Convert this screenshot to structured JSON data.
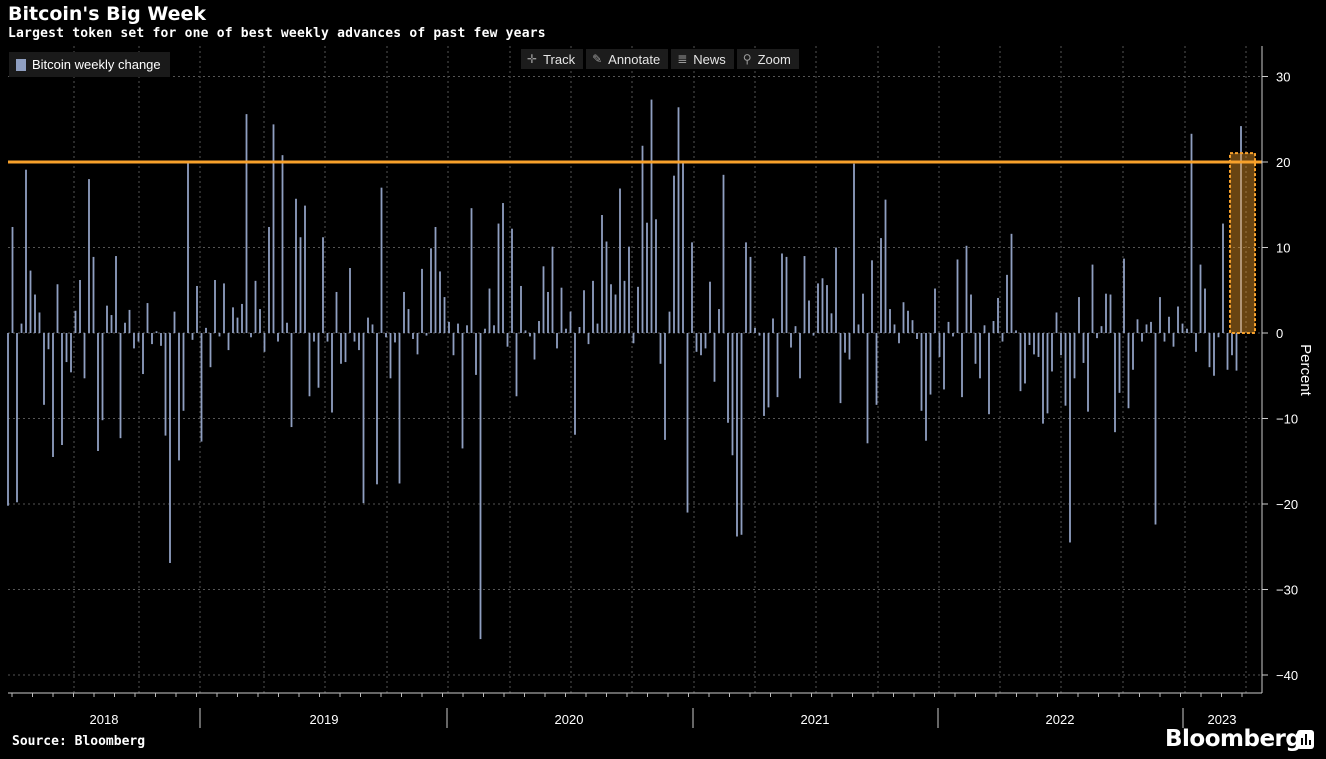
{
  "header": {
    "title": "Bitcoin's Big Week",
    "subtitle": "Largest token set for one of best weekly advances of past few years"
  },
  "legend": {
    "label": "Bitcoin weekly change",
    "color": "#8f9fc1"
  },
  "toolbar": {
    "track_label": "Track",
    "annotate_label": "Annotate",
    "news_label": "News",
    "zoom_label": "Zoom"
  },
  "footer": {
    "source": "Source: Bloomberg",
    "brand": "Bloomberg"
  },
  "colors": {
    "bar": "#8f9fc1",
    "reference_line": "#f7a12b",
    "highlight": "#f7a12b",
    "grid": "#5a5a5a"
  },
  "chart_data": {
    "type": "bar",
    "series_name": "Bitcoin weekly change",
    "ylabel": "Percent",
    "ylim": [
      -42,
      33
    ],
    "yticks": [
      30,
      20,
      10,
      0,
      -10,
      -20,
      -30,
      -40
    ],
    "x_labels": [
      "2018",
      "2019",
      "2020",
      "2021",
      "2022",
      "2023"
    ],
    "reference_line": 20,
    "highlight_last_bar": true,
    "grid": true,
    "legend_position": "top-left",
    "values": [
      -20.2,
      12.4,
      -19.8,
      1.1,
      19.1,
      7.3,
      4.5,
      2.4,
      -8.4,
      -1.9,
      -14.5,
      5.7,
      -13.1,
      -3.4,
      -4.6,
      2.6,
      6.2,
      -5.3,
      18.0,
      8.9,
      -13.8,
      -10.2,
      3.2,
      2.1,
      9.0,
      -12.3,
      1.2,
      2.7,
      -1.8,
      -1.0,
      -4.8,
      3.5,
      -1.3,
      0.2,
      -1.5,
      -12.0,
      -26.9,
      2.5,
      -14.9,
      -9.1,
      19.9,
      -0.8,
      5.5,
      -12.7,
      0.6,
      -4.0,
      6.2,
      -0.4,
      5.8,
      -2.0,
      3.0,
      1.8,
      3.4,
      25.6,
      -0.5,
      6.1,
      2.8,
      -2.2,
      12.4,
      24.4,
      -1.0,
      20.8,
      1.2,
      -11.0,
      15.7,
      11.2,
      14.9,
      -7.4,
      -1.0,
      -6.4,
      11.2,
      -1.0,
      -9.3,
      4.8,
      -3.6,
      -3.4,
      7.6,
      -1.0,
      -2.0,
      -19.9,
      1.8,
      1.0,
      -17.7,
      17.0,
      -0.5,
      -5.3,
      -1.1,
      -17.6,
      4.8,
      2.8,
      -0.7,
      -2.5,
      7.5,
      -0.3,
      9.9,
      12.4,
      7.2,
      4.2,
      1.3,
      -2.6,
      1.1,
      -13.5,
      0.9,
      14.6,
      -4.9,
      -35.8,
      0.5,
      5.2,
      0.9,
      12.8,
      15.2,
      -1.6,
      12.2,
      -7.4,
      5.5,
      0.3,
      -0.4,
      -3.1,
      1.4,
      7.8,
      4.8,
      10.1,
      -1.8,
      5.3,
      0.5,
      2.5,
      -11.9,
      0.7,
      5.0,
      -1.3,
      6.1,
      1.1,
      13.8,
      10.7,
      5.7,
      4.5,
      16.9,
      6.1,
      10.1,
      -1.2,
      5.4,
      21.9,
      12.9,
      27.3,
      13.3,
      -3.6,
      -12.5,
      2.5,
      18.4,
      26.4,
      20.1,
      -21.0,
      10.6,
      -2.2,
      -2.6,
      -1.8,
      6.0,
      -5.7,
      2.8,
      18.5,
      -10.5,
      -14.3,
      -23.8,
      -23.6,
      10.6,
      8.9,
      0.6,
      -0.3,
      -9.7,
      -8.7,
      1.7,
      -7.5,
      9.3,
      8.9,
      -1.7,
      0.8,
      -5.3,
      9.0,
      3.8,
      -0.3,
      5.8,
      6.4,
      5.6,
      2.3,
      10.0,
      -8.2,
      -2.3,
      -3.1,
      19.8,
      1.0,
      4.6,
      -12.9,
      8.5,
      -8.4,
      11.1,
      15.6,
      2.8,
      1.0,
      -1.2,
      3.6,
      2.6,
      1.5,
      -0.7,
      -9.1,
      -12.6,
      -7.2,
      5.2,
      -2.8,
      -6.6,
      1.3,
      -0.4,
      8.6,
      -7.5,
      10.2,
      4.5,
      -3.6,
      -5.3,
      0.9,
      -9.5,
      1.4,
      4.1,
      -1.0,
      6.8,
      11.6,
      0.3,
      -6.8,
      -5.9,
      -1.4,
      -2.5,
      -2.8,
      -10.6,
      -9.4,
      -4.5,
      2.4,
      -2.6,
      -8.5,
      -24.5,
      -5.3,
      4.2,
      -3.5,
      -9.2,
      8.0,
      -0.6,
      0.8,
      4.6,
      4.5,
      -11.6,
      -7.0,
      8.7,
      -8.8,
      -4.3,
      1.6,
      -1.0,
      1.0,
      1.3,
      -22.4,
      4.2,
      -1.0,
      1.9,
      -1.6,
      3.1,
      1.1,
      0.5,
      23.3,
      -2.2,
      8.0,
      5.2,
      -4.0,
      -5.0,
      -0.5,
      12.8,
      -4.3,
      -2.6,
      -4.4,
      24.2
    ]
  }
}
